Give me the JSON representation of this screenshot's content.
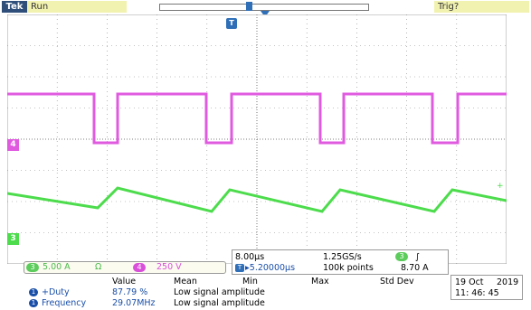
{
  "brand": "Tek",
  "acq_state": "Run",
  "trigger_state": "Trig?",
  "trigger_marker": "T",
  "colors": {
    "ch3": "#4cdc4c",
    "ch4": "#e05ae0",
    "accent": "#1a4fa8"
  },
  "channels": {
    "ch3": {
      "badge": "3",
      "scale": "5.00 A",
      "coupling": "Ω"
    },
    "ch4": {
      "badge": "4",
      "scale": "250 V"
    }
  },
  "timebase": {
    "scale": "8.00µs",
    "position": "▸5.20000µs",
    "position_badge": "T",
    "sample_rate": "1.25GS/s",
    "record_length": "100k points",
    "trigger_badge": "3",
    "trigger_slope": "∫",
    "trigger_level": "8.70 A"
  },
  "date": {
    "date": "19 Oct",
    "year": "2019",
    "time": "11: 46: 45"
  },
  "measurements": {
    "headers": [
      "Value",
      "Mean",
      "Min",
      "Max",
      "Std Dev"
    ],
    "rows": [
      {
        "badge": "1",
        "label": "+Duty",
        "value": "87.79 %",
        "note": "Low signal amplitude"
      },
      {
        "badge": "1",
        "label": "Frequency",
        "value": "29.07MHz",
        "note": "Low signal amplitude"
      }
    ]
  },
  "side_markers": {
    "ch4": "4",
    "ch3": "3"
  }
}
